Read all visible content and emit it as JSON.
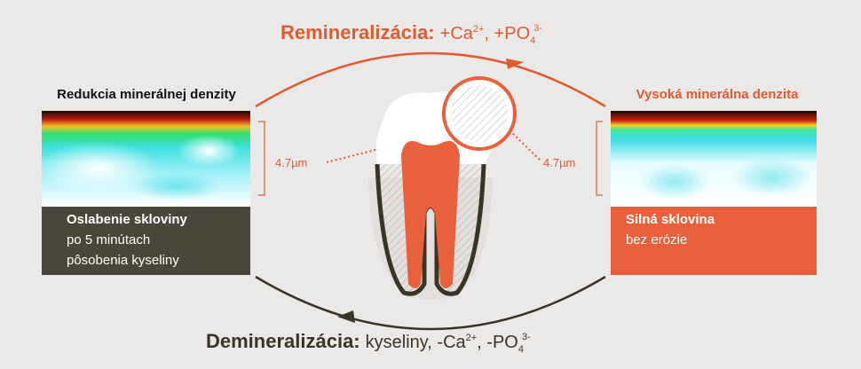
{
  "top_process": {
    "label": "Remineralizácia:",
    "ion1": "+Ca",
    "ion1_charge": "2+",
    "separator": ", +PO",
    "ion2_subscript": "4",
    "ion2_charge": "3-"
  },
  "bottom_process": {
    "label": "Demineralizácia:",
    "ion1": "kyseliny, -Ca",
    "ion1_charge": "2+",
    "separator": ", -PO",
    "ion2_subscript": "4",
    "ion2_charge": "3-"
  },
  "left_panel": {
    "title": "Redukcia minerálnej denzity",
    "caption_title": "Oslabenie skloviny",
    "caption_lines": [
      "po 5 minútach",
      "pôsobenia kyseliny"
    ],
    "measurement": "4.7µm"
  },
  "right_panel": {
    "title": "Vysoká minerálna denzita",
    "caption_title": "Silná sklovina",
    "caption_lines": [
      "bez erózie"
    ],
    "measurement": "4.7µm"
  }
}
